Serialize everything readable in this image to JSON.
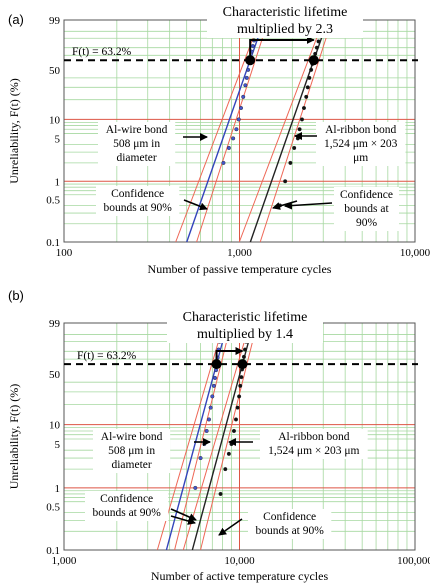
{
  "chart_data": [
    {
      "panel": "(a)",
      "type": "line",
      "title_lines": [
        "Characteristic lifetime",
        "multiplied by 2.3"
      ],
      "xlabel": "Number of passive temperature cycles",
      "ylabel": "Unreliability, F(t) (%)",
      "x_scale": "log",
      "y_scale": "weibull",
      "xlim": [
        100,
        10000
      ],
      "ylim": [
        0.1,
        99
      ],
      "x_ticks": [
        100,
        1000,
        10000
      ],
      "x_tick_labels": [
        "100",
        "1,000",
        "10,000"
      ],
      "y_ticks": [
        0.1,
        0.5,
        1,
        5,
        10,
        50,
        99
      ],
      "y_tick_labels": [
        "0.1",
        "0.5",
        "1",
        "5",
        "10",
        "50",
        "99"
      ],
      "grid": true,
      "reference": {
        "label": "F(t) = 63.2%",
        "y": 63.2
      },
      "annotations": [
        {
          "lines": [
            "Al-wire bond",
            "508 μm in",
            "diameter"
          ]
        },
        {
          "lines": [
            "Al-ribbon bond",
            "1,524 μm × 203",
            "μm"
          ]
        },
        {
          "lines": [
            "Confidence",
            "bounds at 90%"
          ]
        },
        {
          "lines": [
            "Confidence",
            "bounds at",
            "90%"
          ]
        }
      ],
      "series": [
        {
          "eta": 1150,
          "beta": 8.3,
          "color": "#3344bb",
          "conf_color": "#ee6655",
          "conf_span": 0.07,
          "points": [
            [
              810,
              2
            ],
            [
              870,
              3.5
            ],
            [
              920,
              5
            ],
            [
              960,
              7
            ],
            [
              990,
              10
            ],
            [
              1020,
              15
            ],
            [
              1050,
              22
            ],
            [
              1080,
              32
            ],
            [
              1100,
              40
            ],
            [
              1120,
              50
            ],
            [
              1140,
              60
            ],
            [
              1155,
              67
            ],
            [
              1170,
              75
            ],
            [
              1190,
              82
            ],
            [
              1210,
              88
            ],
            [
              1230,
              92
            ],
            [
              1250,
              95
            ]
          ]
        },
        {
          "eta": 2650,
          "beta": 8.3,
          "color": "#222222",
          "conf_color": "#ee6655",
          "conf_span": 0.07,
          "points": [
            [
              1700,
              0.4
            ],
            [
              1820,
              1
            ],
            [
              1950,
              2
            ],
            [
              2050,
              3.5
            ],
            [
              2150,
              5
            ],
            [
              2200,
              7
            ],
            [
              2270,
              10
            ],
            [
              2330,
              15
            ],
            [
              2400,
              22
            ],
            [
              2450,
              30
            ],
            [
              2500,
              40
            ],
            [
              2560,
              50
            ],
            [
              2600,
              58
            ],
            [
              2650,
              65
            ],
            [
              2700,
              72
            ],
            [
              2760,
              80
            ],
            [
              2820,
              87
            ],
            [
              2880,
              92
            ],
            [
              2940,
              95
            ]
          ]
        }
      ],
      "markers": [
        {
          "x": 1150,
          "y": 63.2
        },
        {
          "x": 2650,
          "y": 63.2
        }
      ]
    },
    {
      "panel": "(b)",
      "type": "line",
      "title_lines": [
        "Characteristic lifetime",
        "multiplied by 1.4"
      ],
      "xlabel": "Number of active temperature cycles",
      "ylabel": "Unreliability, F(t) (%)",
      "x_scale": "log",
      "y_scale": "weibull",
      "xlim": [
        1000,
        100000
      ],
      "ylim": [
        0.1,
        99
      ],
      "x_ticks": [
        1000,
        10000,
        100000
      ],
      "x_tick_labels": [
        "1,000",
        "10,000",
        "100,000"
      ],
      "y_ticks": [
        0.1,
        0.5,
        1,
        5,
        10,
        50,
        99
      ],
      "y_tick_labels": [
        "0.1",
        "0.5",
        "1",
        "5",
        "10",
        "50",
        "99"
      ],
      "grid": true,
      "reference": {
        "label": "F(t) = 63.2%",
        "y": 63.2
      },
      "annotations": [
        {
          "lines": [
            "Al-wire bond",
            "508 μm in",
            "diameter"
          ]
        },
        {
          "lines": [
            "Al-ribbon bond",
            "1,524 μm × 203 μm"
          ]
        },
        {
          "lines": [
            "Confidence",
            "bounds at 90%"
          ]
        },
        {
          "lines": [
            "Confidence",
            "bounds at 90%"
          ]
        }
      ],
      "series": [
        {
          "eta": 7400,
          "beta": 10.5,
          "color": "#3344bb",
          "conf_color": "#ee6655",
          "conf_span": 0.06,
          "points": [
            [
              5600,
              1
            ],
            [
              6000,
              3
            ],
            [
              6300,
              5
            ],
            [
              6500,
              8
            ],
            [
              6700,
              12
            ],
            [
              6850,
              18
            ],
            [
              7000,
              26
            ],
            [
              7150,
              36
            ],
            [
              7250,
              45
            ],
            [
              7350,
              55
            ],
            [
              7420,
              63
            ],
            [
              7500,
              72
            ],
            [
              7600,
              82
            ],
            [
              7700,
              90
            ],
            [
              7800,
              95
            ]
          ]
        },
        {
          "eta": 10400,
          "beta": 10.5,
          "color": "#222222",
          "conf_color": "#ee6655",
          "conf_span": 0.06,
          "points": [
            [
              7800,
              0.8
            ],
            [
              8300,
              2
            ],
            [
              8700,
              3.5
            ],
            [
              9000,
              5
            ],
            [
              9300,
              8
            ],
            [
              9550,
              12
            ],
            [
              9750,
              18
            ],
            [
              9950,
              26
            ],
            [
              10100,
              36
            ],
            [
              10250,
              46
            ],
            [
              10350,
              56
            ],
            [
              10450,
              64
            ],
            [
              10600,
              73
            ],
            [
              10750,
              82
            ],
            [
              10900,
              90
            ],
            [
              11050,
              95
            ]
          ]
        }
      ],
      "markers": [
        {
          "x": 7400,
          "y": 63.2
        },
        {
          "x": 10400,
          "y": 63.2
        }
      ]
    }
  ]
}
